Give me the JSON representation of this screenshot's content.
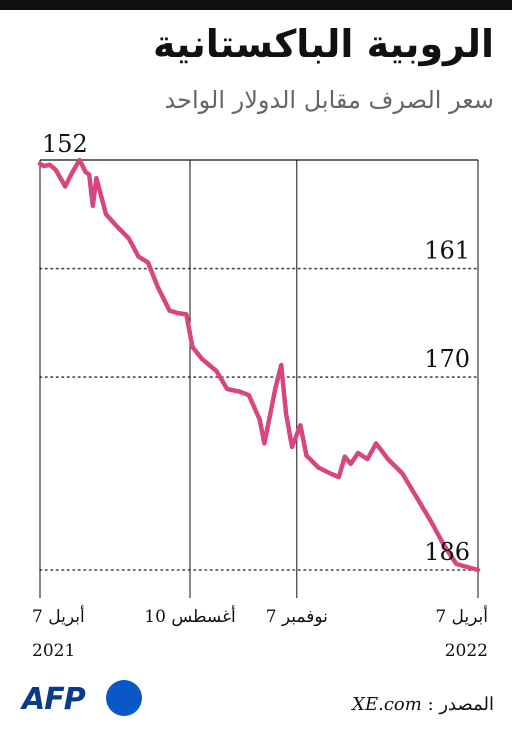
{
  "title": "الروبية الباكستانية",
  "subtitle": "سعر الصرف مقابل الدولار الواحد",
  "source_label": "المصدر :",
  "source_value": "XE.com",
  "logo_text": "AFP",
  "colors": {
    "line": "#d6467f",
    "axis": "#111111",
    "grid": "#444444",
    "text": "#111111"
  },
  "chart_data": {
    "type": "line",
    "title": "الروبية الباكستانية",
    "subtitle": "سعر الصرف مقابل الدولار الواحد",
    "y_inverted": true,
    "ylim": [
      152,
      186
    ],
    "y_ticks": [
      152,
      161,
      170,
      186
    ],
    "y_gridlines": [
      161,
      170,
      186
    ],
    "x_ticks": [
      {
        "label": "7 أبريل",
        "sub": "2021",
        "date": "2021-04-07"
      },
      {
        "label": "10 أغسطس",
        "sub": "",
        "date": "2021-08-10"
      },
      {
        "label": "7 نوفمبر",
        "sub": "",
        "date": "2021-11-07"
      },
      {
        "label": "7 أبريل",
        "sub": "2022",
        "date": "2022-04-07"
      }
    ],
    "xlim": [
      "2021-04-07",
      "2022-04-07"
    ],
    "series": [
      {
        "points": [
          [
            "2021-04-07",
            152.3
          ],
          [
            "2021-04-10",
            152.5
          ],
          [
            "2021-04-15",
            152.4
          ],
          [
            "2021-04-20",
            152.8
          ],
          [
            "2021-04-28",
            154.2
          ],
          [
            "2021-05-04",
            153.0
          ],
          [
            "2021-05-10",
            152.0
          ],
          [
            "2021-05-15",
            153.0
          ],
          [
            "2021-05-18",
            153.2
          ],
          [
            "2021-05-21",
            155.8
          ],
          [
            "2021-05-24",
            153.5
          ],
          [
            "2021-06-01",
            156.5
          ],
          [
            "2021-06-10",
            157.5
          ],
          [
            "2021-06-20",
            158.5
          ],
          [
            "2021-06-28",
            160.0
          ],
          [
            "2021-07-06",
            160.5
          ],
          [
            "2021-07-14",
            162.5
          ],
          [
            "2021-07-24",
            164.5
          ],
          [
            "2021-07-31",
            164.7
          ],
          [
            "2021-08-07",
            164.8
          ],
          [
            "2021-08-12",
            167.5
          ],
          [
            "2021-08-20",
            168.5
          ],
          [
            "2021-09-01",
            169.5
          ],
          [
            "2021-09-10",
            171.0
          ],
          [
            "2021-09-20",
            171.2
          ],
          [
            "2021-09-28",
            171.5
          ],
          [
            "2021-10-07",
            173.5
          ],
          [
            "2021-10-11",
            175.5
          ],
          [
            "2021-10-15",
            173.5
          ],
          [
            "2021-10-20",
            171.0
          ],
          [
            "2021-10-25",
            169.0
          ],
          [
            "2021-10-29",
            173.0
          ],
          [
            "2021-11-03",
            175.8
          ],
          [
            "2021-11-10",
            174.0
          ],
          [
            "2021-11-15",
            176.5
          ],
          [
            "2021-11-25",
            177.5
          ],
          [
            "2021-12-05",
            178.0
          ],
          [
            "2021-12-12",
            178.3
          ],
          [
            "2021-12-17",
            176.6
          ],
          [
            "2021-12-22",
            177.2
          ],
          [
            "2021-12-28",
            176.3
          ],
          [
            "2022-01-05",
            176.8
          ],
          [
            "2022-01-12",
            175.5
          ],
          [
            "2022-01-22",
            176.8
          ],
          [
            "2022-02-03",
            178.0
          ],
          [
            "2022-02-15",
            180.0
          ],
          [
            "2022-02-27",
            182.0
          ],
          [
            "2022-03-10",
            184.0
          ],
          [
            "2022-03-20",
            185.5
          ],
          [
            "2022-04-07",
            186.0
          ]
        ]
      }
    ]
  }
}
